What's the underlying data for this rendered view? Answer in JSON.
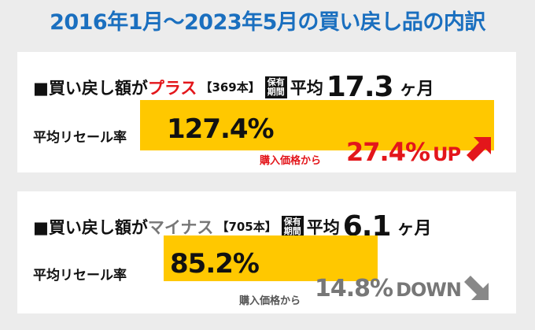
{
  "title": "2016年1月～2023年5月の買い戻し品の内訳",
  "sections": [
    {
      "heading_prefix": "■買い戻し額が",
      "heading_highlight": "プラス",
      "count": "【369本】",
      "badge": [
        "保有",
        "期間"
      ],
      "avg_label": "平均",
      "avg_value": "17.3",
      "avg_unit": "ヶ月",
      "resale_label": "平均リセール率",
      "resale_rate": "127.4%",
      "diff_label": "購入価格から",
      "diff_value": "27.4%",
      "diff_suffix": "UP",
      "accent": "#e3161b",
      "arrow_icon": "arrow-up-right-icon"
    },
    {
      "heading_prefix": "■買い戻し額が",
      "heading_highlight": "マイナス",
      "count": "【705本】",
      "badge": [
        "保有",
        "期間"
      ],
      "avg_label": "平均",
      "avg_value": "6.1",
      "avg_unit": "ヶ月",
      "resale_label": "平均リセール率",
      "resale_rate": "85.2%",
      "diff_label": "購入価格から",
      "diff_value": "14.8%",
      "diff_suffix": "DOWN",
      "accent": "#888888",
      "arrow_icon": "arrow-down-right-icon"
    }
  ],
  "colors": {
    "title": "#1a6fbf",
    "bar": "#ffc800",
    "background": "#ececec"
  }
}
